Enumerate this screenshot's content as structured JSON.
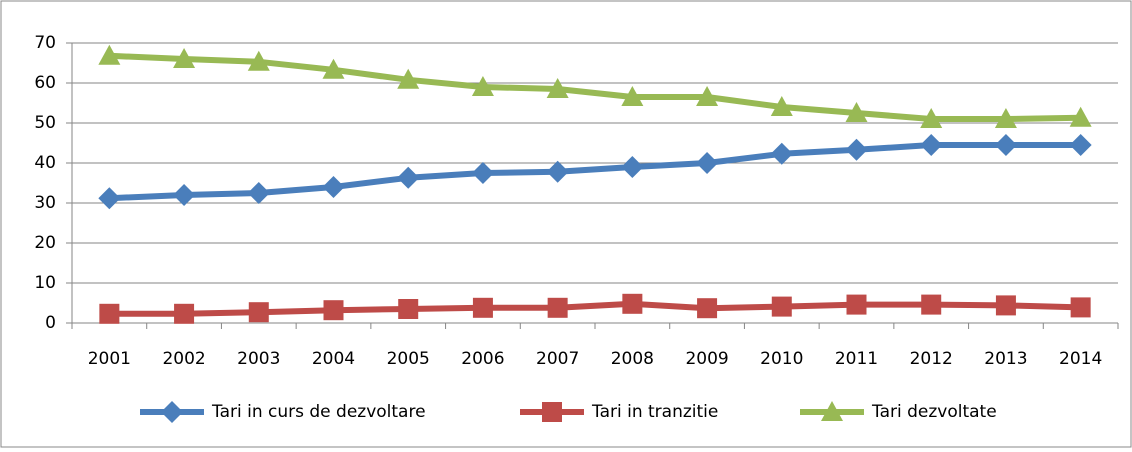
{
  "chart_data": {
    "type": "line",
    "categories": [
      "2001",
      "2002",
      "2003",
      "2004",
      "2005",
      "2006",
      "2007",
      "2008",
      "2009",
      "2010",
      "2011",
      "2012",
      "2013",
      "2014"
    ],
    "series": [
      {
        "name": "Tari in curs de dezvoltare",
        "color": "#4a7ebb",
        "marker": "diamond",
        "values": [
          31.2,
          32,
          32.5,
          34,
          36.3,
          37.5,
          37.8,
          39,
          40,
          42.3,
          43.3,
          44.5,
          44.5,
          44.5
        ]
      },
      {
        "name": "Tari in tranzitie",
        "color": "#be4b48",
        "marker": "square",
        "values": [
          2.3,
          2.3,
          2.7,
          3.2,
          3.5,
          3.8,
          3.8,
          4.8,
          3.7,
          4.1,
          4.6,
          4.6,
          4.4,
          3.9
        ]
      },
      {
        "name": "Tari dezvoltate",
        "color": "#98b954",
        "marker": "triangle",
        "values": [
          66.8,
          66,
          65.3,
          63.3,
          60.8,
          59,
          58.5,
          56.5,
          56.5,
          54,
          52.5,
          51,
          51,
          51.3
        ]
      }
    ],
    "ylim": [
      0,
      70
    ],
    "yticks": [
      0,
      10,
      20,
      30,
      40,
      50,
      60,
      70
    ],
    "grid": true,
    "legend": "bottom"
  }
}
